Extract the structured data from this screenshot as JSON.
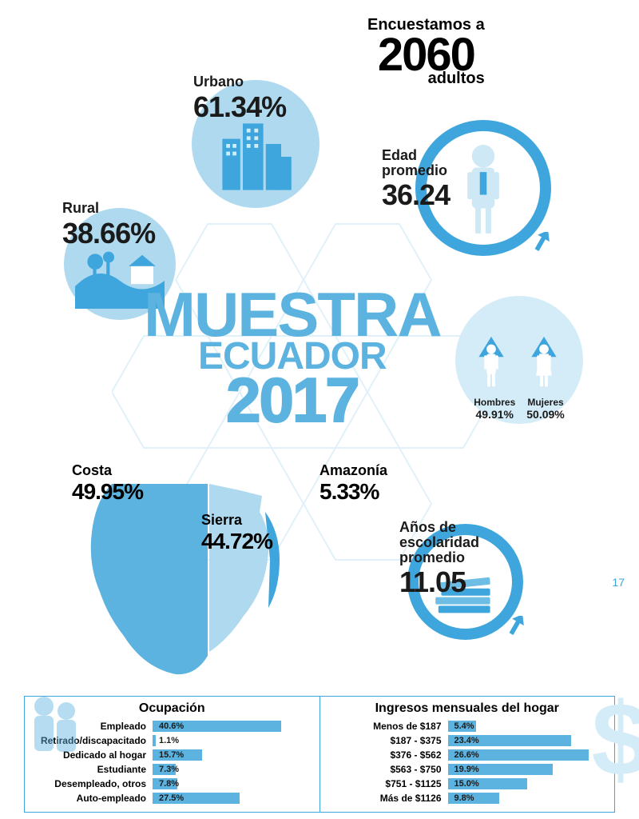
{
  "page_number": "17",
  "title": {
    "line1": "MUESTRA",
    "line2": "ECUADOR",
    "line3": "2017"
  },
  "colors": {
    "accent": "#3fa6dd",
    "accent_light": "#5db3e0",
    "pale": "#aed9ef",
    "paler": "#d4ecf8",
    "text": "#1a1a1a",
    "bg": "#ffffff"
  },
  "encuestamos": {
    "l1": "Encuestamos a",
    "l2": "2060",
    "l3": "adultos"
  },
  "stats": {
    "urbano": {
      "label": "Urbano",
      "value": "61.34%"
    },
    "rural": {
      "label": "Rural",
      "value": "38.66%"
    },
    "edad": {
      "label": "Edad\npromedio",
      "value": "36.24"
    },
    "escolaridad": {
      "label": "Años de\nescolaridad\npromedio",
      "value": "11.05"
    }
  },
  "gender": {
    "hombres": {
      "label": "Hombres",
      "value": "49.91%"
    },
    "mujeres": {
      "label": "Mujeres",
      "value": "50.09%"
    }
  },
  "regions": {
    "costa": {
      "label": "Costa",
      "value": "49.95%"
    },
    "sierra": {
      "label": "Sierra",
      "value": "44.72%"
    },
    "amazonia": {
      "label": "Amazonía",
      "value": "5.33%"
    }
  },
  "occupation": {
    "header": "Ocupación",
    "bar_color": "#5db3e0",
    "max_pct": 50,
    "rows": [
      {
        "label": "Empleado",
        "value": "40.6%",
        "pct": 40.6
      },
      {
        "label": "Retirado/discapacitado",
        "value": "1.1%",
        "pct": 1.1
      },
      {
        "label": "Dedicado al hogar",
        "value": "15.7%",
        "pct": 15.7
      },
      {
        "label": "Estudiante",
        "value": "7.3%",
        "pct": 7.3
      },
      {
        "label": "Desempleado, otros",
        "value": "7.8%",
        "pct": 7.8
      },
      {
        "label": "Auto-empleado",
        "value": "27.5%",
        "pct": 27.5
      }
    ]
  },
  "income": {
    "header": "Ingresos mensuales del hogar",
    "bar_color": "#5db3e0",
    "max_pct": 30,
    "rows": [
      {
        "label": "Menos de $187",
        "value": "5.4%",
        "pct": 5.4
      },
      {
        "label": "$187 - $375",
        "value": "23.4%",
        "pct": 23.4
      },
      {
        "label": "$376 - $562",
        "value": "26.6%",
        "pct": 26.6
      },
      {
        "label": "$563 - $750",
        "value": "19.9%",
        "pct": 19.9
      },
      {
        "label": "$751 - $1125",
        "value": "15.0%",
        "pct": 15.0
      },
      {
        "label": "Más de $1126",
        "value": "9.8%",
        "pct": 9.8
      }
    ]
  }
}
